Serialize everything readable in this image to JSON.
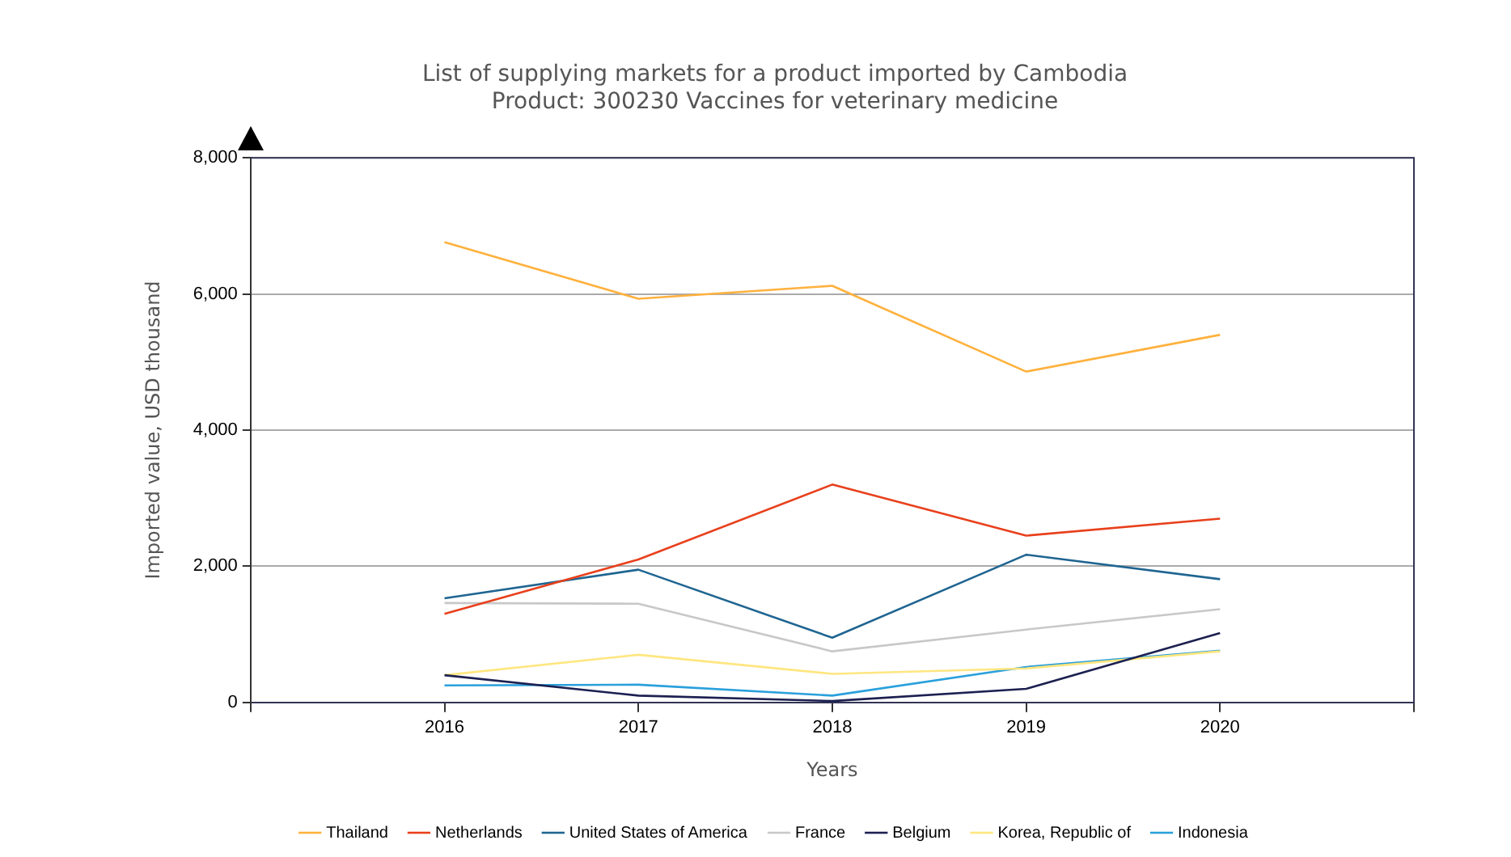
{
  "chart_data": {
    "type": "line",
    "title": "List of supplying markets for a product imported by Cambodia",
    "subtitle": "Product: 300230 Vaccines for veterinary medicine",
    "xlabel": "Years",
    "ylabel": "Imported value, USD thousand",
    "x": [
      2016,
      2017,
      2018,
      2019,
      2020
    ],
    "xlim": [
      2015,
      2021
    ],
    "xticks": [
      {
        "value": 2015,
        "label": null
      },
      2016,
      2017,
      2018,
      2019,
      2020,
      {
        "value": 2021,
        "label": null
      }
    ],
    "ylim": [
      0,
      8000
    ],
    "yticks": [
      {
        "value": 0,
        "label": "0"
      },
      {
        "value": 2000,
        "label": "2,000"
      },
      {
        "value": 4000,
        "label": "4,000"
      },
      {
        "value": 6000,
        "label": "6,000"
      },
      {
        "value": 8000,
        "label": "8,000"
      }
    ],
    "grid": "y",
    "legend": "bottom",
    "marker": "none",
    "series": [
      {
        "name": "Thailand",
        "color": "#ffb13d",
        "values": [
          6760,
          5930,
          6120,
          4860,
          5400
        ]
      },
      {
        "name": "Netherlands",
        "color": "#e8401c",
        "values": [
          1300,
          2100,
          3200,
          2450,
          2700
        ]
      },
      {
        "name": "United States of America",
        "color": "#1f6591",
        "values": [
          1530,
          1950,
          950,
          2170,
          1810
        ]
      },
      {
        "name": "France",
        "color": "#c8c8c8",
        "values": [
          1460,
          1450,
          750,
          1070,
          1370
        ]
      },
      {
        "name": "Belgium",
        "color": "#1c2050",
        "values": [
          400,
          100,
          20,
          200,
          1020
        ]
      },
      {
        "name": "Korea, Republic of",
        "color": "#ffe680",
        "values": [
          400,
          700,
          420,
          500,
          750
        ]
      },
      {
        "name": "Indonesia",
        "color": "#2aa0dc",
        "values": [
          250,
          260,
          100,
          520,
          760
        ]
      }
    ]
  }
}
